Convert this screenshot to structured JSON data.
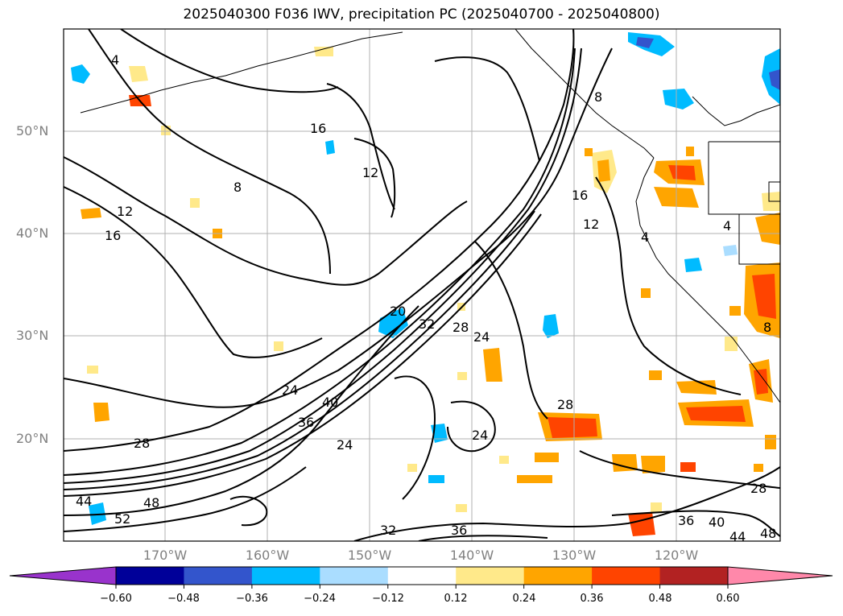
{
  "title": "2025040300 F036 IWV, precipitation PC (2025040700 - 2025040800)",
  "lat_labels": [
    "50°N",
    "40°N",
    "30°N",
    "20°N"
  ],
  "lon_labels": [
    "170°W",
    "160°W",
    "150°W",
    "140°W",
    "130°W",
    "120°W"
  ],
  "iwv_contour_labels": [
    "4",
    "8",
    "12",
    "16",
    "12",
    "16",
    "20",
    "24",
    "28",
    "32",
    "36",
    "40",
    "44",
    "48",
    "52",
    "24",
    "28",
    "24",
    "24",
    "28",
    "16",
    "12",
    "4",
    "4",
    "8",
    "8",
    "28",
    "36",
    "40",
    "44",
    "48",
    "32",
    "36"
  ],
  "colorbar": {
    "ticks": [
      "−0.60",
      "−0.48",
      "−0.36",
      "−0.24",
      "−0.12",
      "0.12",
      "0.24",
      "0.36",
      "0.48",
      "0.60"
    ],
    "colors": [
      "#9933cc",
      "#000099",
      "#3355cc",
      "#00bbff",
      "#aaddff",
      "#ffffff",
      "#ffe98a",
      "#ffa500",
      "#ff4400",
      "#b22222",
      "#ff88aa"
    ]
  }
}
